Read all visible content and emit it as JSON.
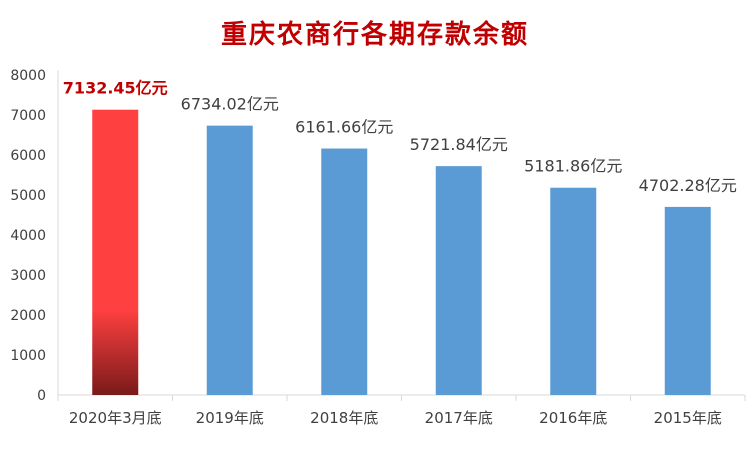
{
  "chart_data": {
    "type": "bar",
    "title": "重庆农商行各期存款余额",
    "categories": [
      "2020年3月底",
      "2019年底",
      "2018年底",
      "2017年底",
      "2016年底",
      "2015年底"
    ],
    "values": [
      7132.45,
      6734.02,
      6161.66,
      5721.84,
      5181.86,
      4702.28
    ],
    "data_labels": [
      "7132.45亿元",
      "6734.02亿元",
      "6161.66亿元",
      "5721.84亿元",
      "5181.86亿元",
      "4702.28亿元"
    ],
    "yticks": [
      "0",
      "1000",
      "2000",
      "3000",
      "4000",
      "5000",
      "6000",
      "7000",
      "8000"
    ],
    "ylim": [
      0,
      8000
    ],
    "highlight_index": 0,
    "colors": {
      "bar": "#5b9bd5",
      "highlight_top": "#ff4040",
      "highlight_bottom": "#7a1a1a",
      "highlight_label": "#c00000",
      "title": "#c00000",
      "axis": "#d9d9d9"
    },
    "grid": false,
    "legend": "none"
  }
}
